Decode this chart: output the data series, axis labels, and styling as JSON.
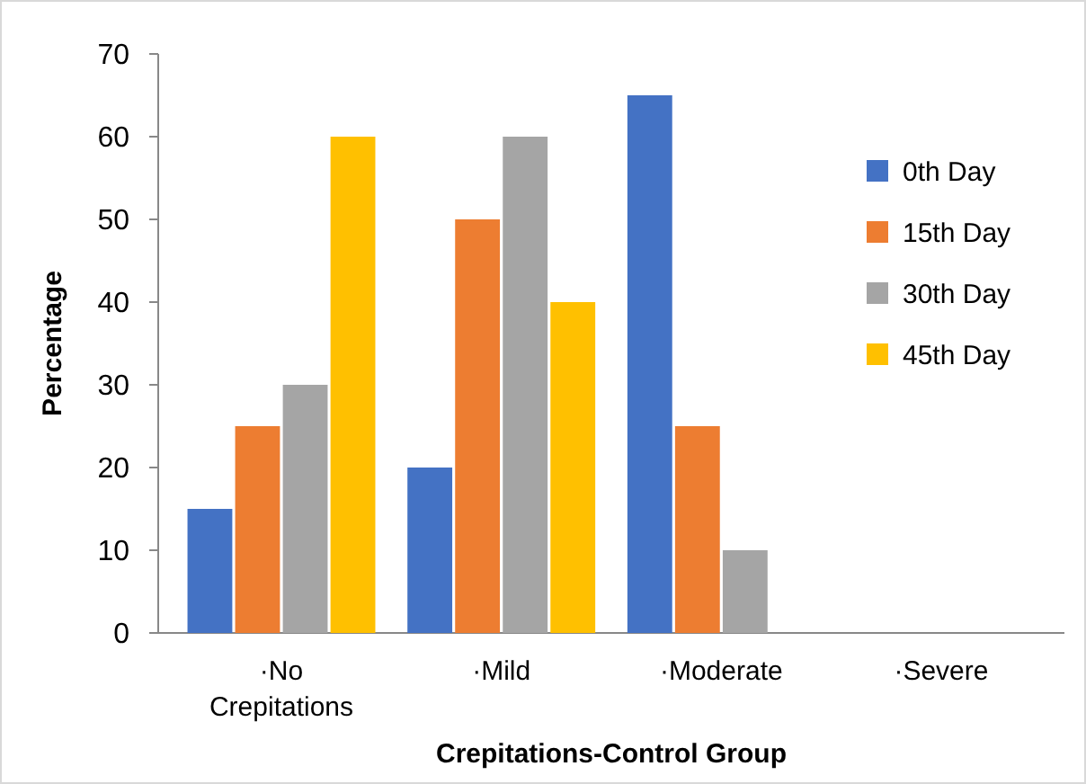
{
  "chart_data": {
    "type": "bar",
    "xlabel": "Crepitations-Control Group",
    "ylabel": "Percentage",
    "categories": [
      "·No Crepitations",
      "·Mild",
      "·Moderate",
      "·Severe"
    ],
    "series": [
      {
        "name": "0th Day",
        "color": "#4472c4",
        "values": [
          15,
          20,
          65,
          0
        ]
      },
      {
        "name": "15th Day",
        "color": "#ed7d31",
        "values": [
          25,
          50,
          25,
          0
        ]
      },
      {
        "name": "30th Day",
        "color": "#a5a5a5",
        "values": [
          30,
          60,
          10,
          0
        ]
      },
      {
        "name": "45th Day",
        "color": "#ffc000",
        "values": [
          60,
          40,
          0,
          0
        ]
      }
    ],
    "ylim": [
      0,
      70
    ],
    "yticks": [
      0,
      10,
      20,
      30,
      40,
      50,
      60,
      70
    ],
    "grid": false,
    "legend": "right"
  }
}
